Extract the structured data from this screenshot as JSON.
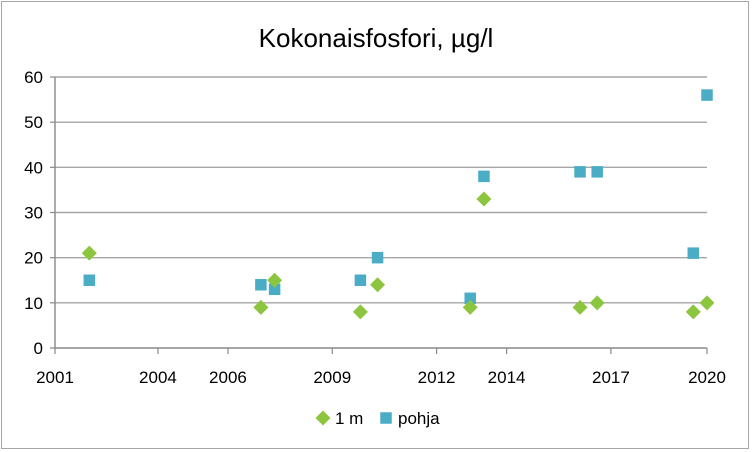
{
  "chart_data": {
    "type": "scatter",
    "title": "Kokonaisfosfori, µg/l",
    "xlabel": "",
    "ylabel": "",
    "xlim": [
      2001,
      2020
    ],
    "ylim": [
      0,
      60
    ],
    "x_ticks": [
      {
        "label": "2001",
        "value": 2001.0
      },
      {
        "label": "2004",
        "value": 2004.0
      },
      {
        "label": "2006",
        "value": 2006.04
      },
      {
        "label": "2009",
        "value": 2009.08
      },
      {
        "label": "2012",
        "value": 2012.12
      },
      {
        "label": "2014",
        "value": 2014.16
      },
      {
        "label": "2017",
        "value": 2017.2
      },
      {
        "label": "2020",
        "value": 2020.0
      }
    ],
    "y_ticks": [
      0,
      10,
      20,
      30,
      40,
      50,
      60
    ],
    "grid": "horizontal",
    "legend_position": "bottom",
    "series": [
      {
        "name": "1 m",
        "color": "#8cc63e",
        "marker": "diamond",
        "points": [
          {
            "x": 2002.0,
            "y": 21
          },
          {
            "x": 2007.0,
            "y": 9
          },
          {
            "x": 2007.4,
            "y": 15
          },
          {
            "x": 2009.9,
            "y": 8
          },
          {
            "x": 2010.4,
            "y": 14
          },
          {
            "x": 2013.1,
            "y": 9
          },
          {
            "x": 2013.5,
            "y": 33
          },
          {
            "x": 2016.3,
            "y": 9
          },
          {
            "x": 2016.8,
            "y": 10
          },
          {
            "x": 2019.6,
            "y": 8
          },
          {
            "x": 2020.0,
            "y": 10
          }
        ]
      },
      {
        "name": "pohja",
        "color": "#4bacc6",
        "marker": "square",
        "points": [
          {
            "x": 2002.0,
            "y": 15
          },
          {
            "x": 2007.0,
            "y": 14
          },
          {
            "x": 2007.4,
            "y": 13
          },
          {
            "x": 2009.9,
            "y": 15
          },
          {
            "x": 2010.4,
            "y": 20
          },
          {
            "x": 2013.1,
            "y": 11
          },
          {
            "x": 2013.5,
            "y": 38
          },
          {
            "x": 2016.3,
            "y": 39
          },
          {
            "x": 2016.8,
            "y": 39
          },
          {
            "x": 2019.6,
            "y": 21
          },
          {
            "x": 2020.0,
            "y": 56
          }
        ]
      }
    ]
  }
}
